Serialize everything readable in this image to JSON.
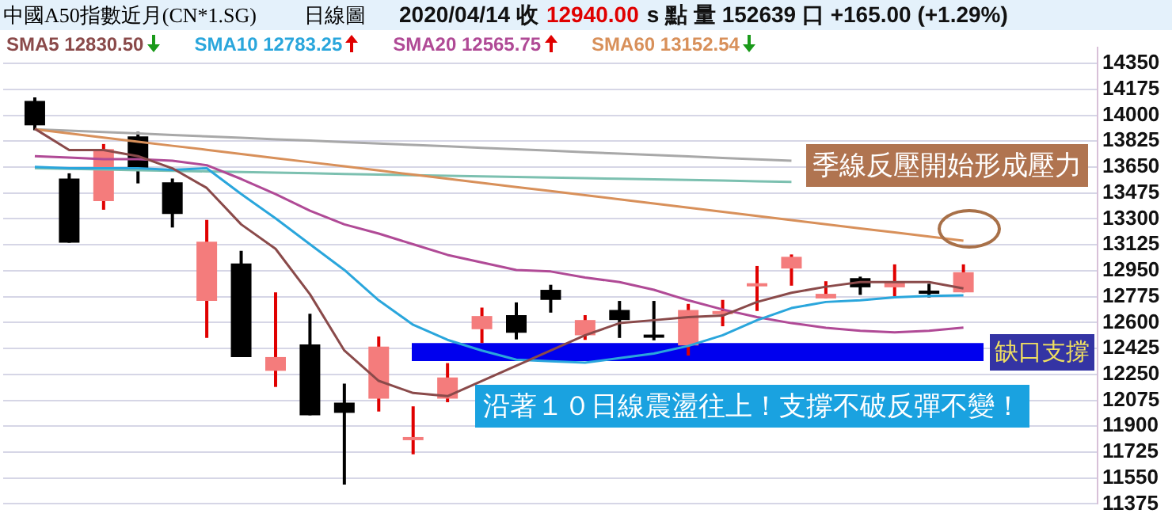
{
  "chart_data": {
    "type": "candlestick",
    "title": "中國A50指數近月(CN*1.SG)",
    "subtitle": "日線圖",
    "annotations": [
      "2020/04/14 收",
      "12940.00",
      "s 點 量 152639 口 +165.00 (+1.29%)",
      "季線反壓開始形成壓力",
      "沿著１０日線震盪往上！支撐不破反彈不變！"
    ],
    "categories": [
      null,
      null,
      null,
      null,
      null,
      null,
      null,
      null,
      null,
      null,
      null,
      null,
      null,
      null,
      null,
      null,
      null,
      null,
      null,
      null,
      null,
      null,
      null,
      null,
      null,
      null,
      null,
      null
    ],
    "ohlc": [
      [
        14097,
        14121,
        13899,
        13932
      ],
      [
        13573,
        13608,
        13139,
        13139
      ],
      [
        13420,
        13806,
        13362,
        13772
      ],
      [
        13858,
        13888,
        13540,
        13642
      ],
      [
        13547,
        13573,
        13242,
        13334
      ],
      [
        12746,
        13293,
        12496,
        13146
      ],
      [
        12999,
        13085,
        12367,
        12367
      ],
      [
        12274,
        12804,
        12165,
        12367
      ],
      [
        12452,
        12660,
        11973,
        11973
      ],
      [
        12059,
        12188,
        11505,
        11990
      ],
      [
        12086,
        12506,
        11999,
        12438
      ],
      [
        11806,
        12034,
        11710,
        11826
      ],
      [
        12086,
        12326,
        12062,
        12229
      ],
      [
        12555,
        12701,
        12462,
        12644
      ],
      [
        12650,
        12736,
        12486,
        12531
      ],
      [
        12821,
        12855,
        12667,
        12753
      ],
      [
        12514,
        12650,
        12483,
        12617
      ],
      [
        12685,
        12746,
        12496,
        12617
      ],
      [
        12516,
        12746,
        12480,
        12500
      ],
      [
        12445,
        12726,
        12377,
        12685
      ],
      [
        12657,
        12753,
        12575,
        12677
      ],
      [
        12845,
        12982,
        12678,
        12865
      ],
      [
        12965,
        13060,
        12849,
        13044
      ],
      [
        12763,
        12879,
        12763,
        12794
      ],
      [
        12900,
        12910,
        12787,
        12838
      ],
      [
        12838,
        12993,
        12777,
        12872
      ],
      [
        12810,
        12862,
        12770,
        12800
      ],
      [
        12804,
        12993,
        12804,
        12940
      ]
    ],
    "series": [
      {
        "name": "SMA5 12830.50",
        "type": "line",
        "color": "#8a4a4a",
        "values": [
          13909,
          13765,
          13765,
          13724,
          13642,
          13509,
          13263,
          13098,
          12791,
          12411,
          12206,
          12124,
          12103,
          12206,
          12308,
          12411,
          12514,
          12596,
          12616,
          12637,
          12647,
          12739,
          12801,
          12842,
          12873,
          12873,
          12873,
          12830.5
        ]
      },
      {
        "name": "SMA10 12783.25",
        "type": "line",
        "color": "#2aa6dc",
        "values": [
          13652,
          13642,
          13642,
          13642,
          13632,
          13642,
          13468,
          13304,
          13129,
          12955,
          12750,
          12585,
          12483,
          12411,
          12349,
          12339,
          12329,
          12360,
          12391,
          12442,
          12514,
          12616,
          12698,
          12739,
          12750,
          12770,
          12780,
          12783.25
        ]
      },
      {
        "name": "SMA20 12565.75",
        "type": "line",
        "color": "#b04a96",
        "values": [
          13724,
          13714,
          13704,
          13704,
          13693,
          13663,
          13570,
          13468,
          13355,
          13263,
          13201,
          13129,
          13057,
          13006,
          12955,
          12945,
          12904,
          12873,
          12821,
          12750,
          12688,
          12637,
          12596,
          12565,
          12545,
          12534,
          12545,
          12565.75
        ]
      },
      {
        "name": "SMA60 13152.54",
        "type": "line",
        "color": "#d8905a",
        "values": [
          13906,
          13878,
          13850,
          13822,
          13794,
          13767,
          13739,
          13711,
          13683,
          13655,
          13627,
          13599,
          13571,
          13543,
          13515,
          13488,
          13460,
          13432,
          13404,
          13376,
          13348,
          13320,
          13292,
          13264,
          13236,
          13209,
          13181,
          13152.54
        ]
      },
      {
        "type": "line",
        "color": "#a8a8a8",
        "values": [
          13906,
          13896,
          13887,
          13877,
          13867,
          13858,
          13848,
          13838,
          13829,
          13819,
          13809,
          13800,
          13790,
          13780,
          13771,
          13761,
          13751,
          13741,
          13732,
          13722,
          13712,
          13703,
          13693,
          null,
          null,
          null,
          null,
          null
        ]
      },
      {
        "type": "line",
        "color": "#7cc0b0",
        "values": [
          13642,
          13638,
          13634,
          13629,
          13625,
          13621,
          13617,
          13613,
          13609,
          13604,
          13600,
          13596,
          13592,
          13588,
          13584,
          13579,
          13575,
          13571,
          13567,
          13563,
          13559,
          13554,
          13550,
          null,
          null,
          null,
          null,
          null
        ]
      }
    ],
    "bands": [
      {
        "axis": "y",
        "from": 12340,
        "to": 12462,
        "label": "缺口支撐",
        "color": "#0000ee"
      }
    ],
    "ylim": [
      11375,
      14460
    ],
    "yticks": [
      11375,
      11550,
      11725,
      11900,
      12075,
      12250,
      12425,
      12600,
      12775,
      12950,
      13125,
      13300,
      13475,
      13650,
      13825,
      14000,
      14175,
      14350
    ],
    "grid": "y",
    "legend": "top",
    "marker": "none"
  }
}
